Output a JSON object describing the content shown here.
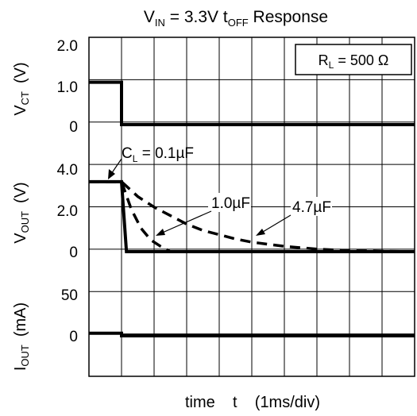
{
  "chart_data": {
    "type": "line",
    "title": {
      "v": "V",
      "v_sub": "IN",
      "mid": " = 3.3V t",
      "t_sub": "OFF",
      "end": " Response"
    },
    "xlabel": "time    t    (1ms/div)",
    "grid": true,
    "annotation_box": {
      "main": "R",
      "sub": "L",
      "rest": " = 500 Ω"
    },
    "panels": [
      {
        "name": "vct",
        "ylabel": {
          "main": "V",
          "sub": "CT",
          "unit": "(V)"
        },
        "ticks": [
          "2.0",
          "1.0",
          "0"
        ],
        "ylim": [
          0,
          2.0
        ],
        "series": [
          {
            "style": "solid",
            "x": [
              0,
              1,
              1,
              10
            ],
            "y": [
              1.0,
              1.0,
              0,
              0
            ]
          }
        ]
      },
      {
        "name": "vout",
        "ylabel": {
          "main": "V",
          "sub": "OUT",
          "unit": "(V)"
        },
        "ticks": [
          "4.0",
          "2.0",
          "0"
        ],
        "ylim": [
          0,
          4.0
        ],
        "series": [
          {
            "name": "C_L = 0.1µF",
            "style": "solid",
            "x": [
              0,
              1,
              1.15,
              10
            ],
            "y": [
              3.3,
              3.3,
              0,
              0
            ]
          },
          {
            "name": "1.0µF",
            "style": "dash",
            "x": [
              0,
              1,
              1.3,
              1.6,
              1.9,
              2.2,
              2.5,
              10
            ],
            "y": [
              3.3,
              3.3,
              2.0,
              1.1,
              0.55,
              0.25,
              0,
              0
            ]
          },
          {
            "name": "4.7µF",
            "style": "dash",
            "x": [
              0,
              1,
              1.5,
              2,
              2.5,
              3,
              3.5,
              4,
              4.5,
              5,
              6,
              7,
              8,
              9,
              10
            ],
            "y": [
              3.3,
              3.3,
              2.6,
              2.1,
              1.7,
              1.3,
              1.0,
              0.8,
              0.6,
              0.45,
              0.25,
              0.12,
              0.05,
              0.02,
              0
            ]
          }
        ],
        "labels": {
          "c01": "C",
          "c01_sub": "L",
          "c01_rest": " = 0.1µF",
          "c10": "1.0µF",
          "c47": "4.7µF"
        }
      },
      {
        "name": "iout",
        "ylabel": {
          "main": "I",
          "sub": "OUT",
          "unit": "(mA)"
        },
        "ticks": [
          "50",
          "0"
        ],
        "ylim": [
          -50,
          50
        ],
        "series": [
          {
            "style": "solid",
            "x": [
              0,
              1,
              1,
              10
            ],
            "y": [
              3,
              3,
              0,
              0
            ]
          }
        ]
      }
    ]
  }
}
